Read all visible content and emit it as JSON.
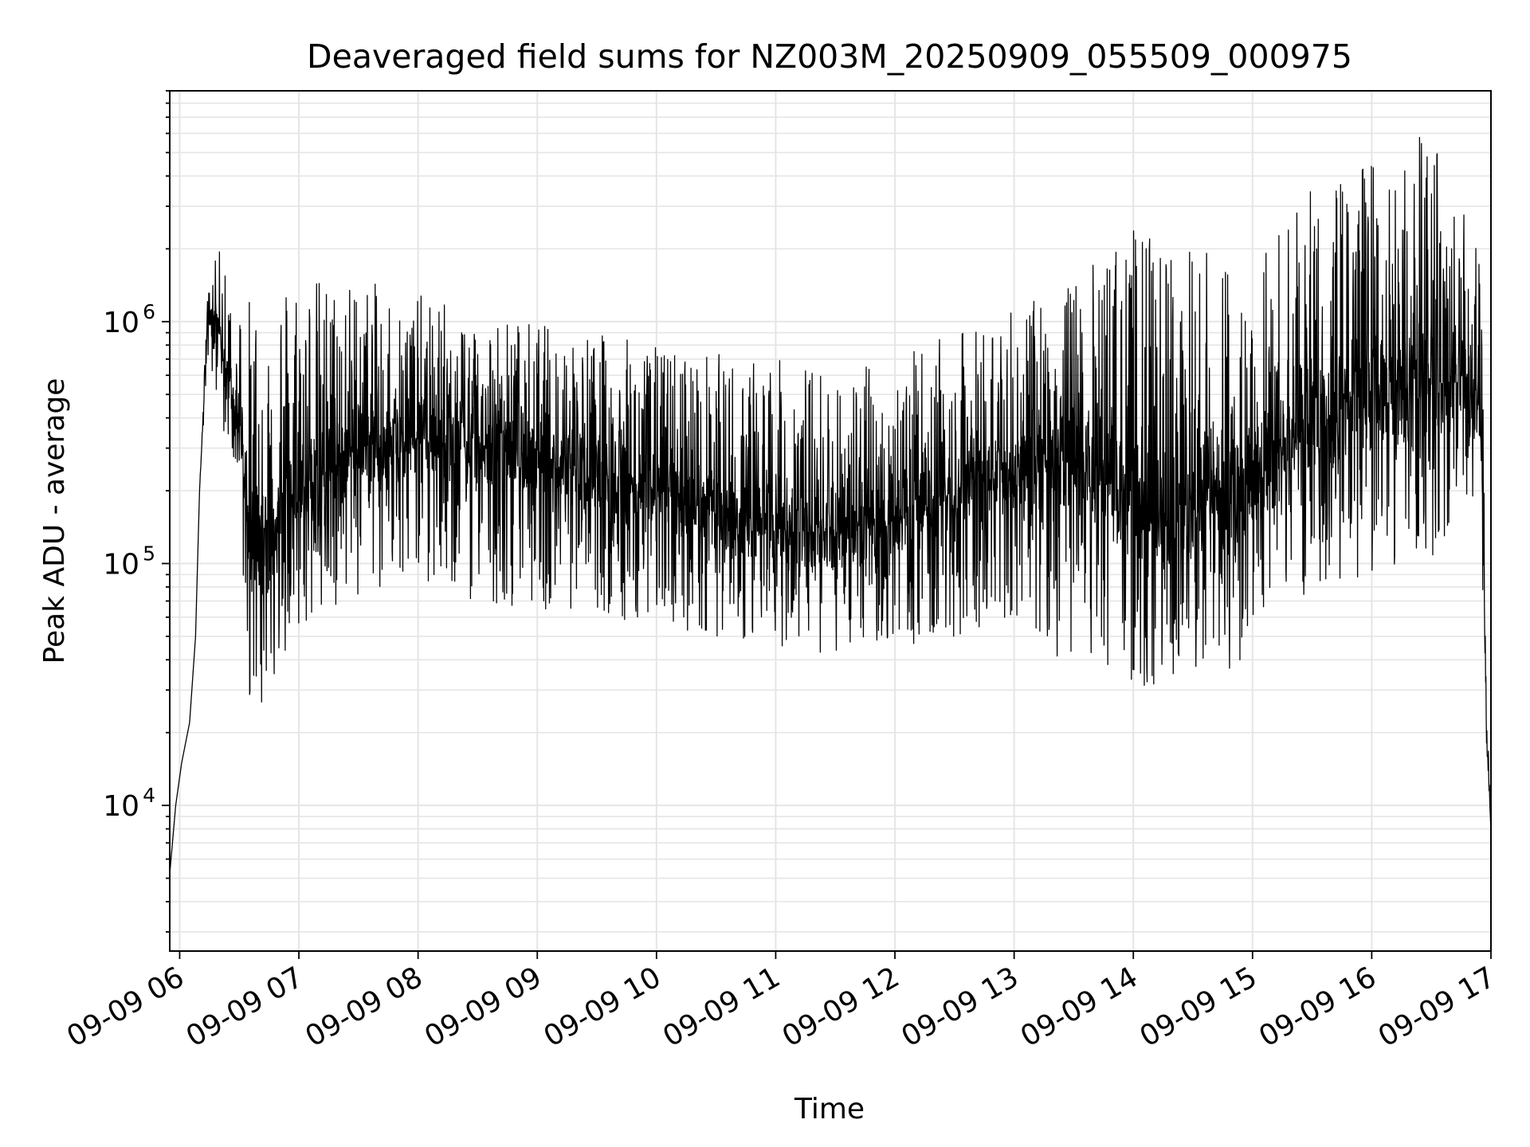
{
  "chart_data": {
    "type": "line",
    "title": "Deaveraged field sums for NZ003M_20250909_055509_000975",
    "xlabel": "Time",
    "ylabel": "Peak ADU - average",
    "yscale": "log",
    "ylim": [
      2500,
      9000000
    ],
    "xlim": [
      "2025-09-09 05:55",
      "2025-09-09 17:00"
    ],
    "grid": true,
    "line_color": "#000000",
    "grid_color": "#e5e5e5",
    "x_ticks": [
      "09-09 06",
      "09-09 07",
      "09-09 08",
      "09-09 09",
      "09-09 10",
      "09-09 11",
      "09-09 12",
      "09-09 13",
      "09-09 14",
      "09-09 15",
      "09-09 16",
      "09-09 17"
    ],
    "y_ticks": [
      {
        "base": "10",
        "exp": "4"
      },
      {
        "base": "10",
        "exp": "5"
      },
      {
        "base": "10",
        "exp": "6"
      }
    ],
    "series": [
      {
        "x": [
          "2025-09-09 05:55",
          "2025-09-09 05:58",
          "2025-09-09 06:01",
          "2025-09-09 06:05",
          "2025-09-09 06:08",
          "2025-09-09 06:10",
          "2025-09-09 06:14",
          "2025-09-09 06:18",
          "2025-09-09 06:22",
          "2025-09-09 06:26",
          "2025-09-09 06:30",
          "2025-09-09 06:35",
          "2025-09-09 06:40",
          "2025-09-09 06:45",
          "2025-09-09 06:50",
          "2025-09-09 07:00",
          "2025-09-09 07:15",
          "2025-09-09 07:30",
          "2025-09-09 07:45",
          "2025-09-09 08:00",
          "2025-09-09 08:30",
          "2025-09-09 09:00",
          "2025-09-09 09:30",
          "2025-09-09 10:00",
          "2025-09-09 10:30",
          "2025-09-09 11:00",
          "2025-09-09 11:30",
          "2025-09-09 12:00",
          "2025-09-09 12:30",
          "2025-09-09 13:00",
          "2025-09-09 13:30",
          "2025-09-09 14:00",
          "2025-09-09 14:30",
          "2025-09-09 15:00",
          "2025-09-09 15:30",
          "2025-09-09 16:00",
          "2025-09-09 16:30",
          "2025-09-09 16:45",
          "2025-09-09 16:55",
          "2025-09-09 16:58",
          "2025-09-09 17:00"
        ],
        "y": [
          5200,
          10000,
          15000,
          22000,
          50000,
          200000,
          1000000,
          1100000,
          700000,
          500000,
          400000,
          150000,
          120000,
          120000,
          150000,
          200000,
          250000,
          300000,
          320000,
          330000,
          300000,
          280000,
          240000,
          200000,
          160000,
          140000,
          130000,
          150000,
          200000,
          250000,
          260000,
          180000,
          160000,
          220000,
          400000,
          500000,
          550000,
          600000,
          400000,
          18000,
          8000
        ],
        "low_envelope": [
          5200,
          10000,
          15000,
          22000,
          50000,
          200000,
          700000,
          500000,
          350000,
          300000,
          200000,
          20000,
          25000,
          30000,
          35000,
          45000,
          60000,
          70000,
          75000,
          80000,
          70000,
          65000,
          60000,
          55000,
          50000,
          45000,
          42000,
          45000,
          50000,
          60000,
          35000,
          30000,
          30000,
          40000,
          70000,
          90000,
          100000,
          180000,
          150000,
          12000,
          7000
        ],
        "high_envelope": [
          5200,
          10000,
          15000,
          22000,
          50000,
          200000,
          1300000,
          1800000,
          2200000,
          1500000,
          1300000,
          1300000,
          1300000,
          1500000,
          1700000,
          1700000,
          1500000,
          1500000,
          1400000,
          1300000,
          1100000,
          1000000,
          900000,
          800000,
          750000,
          700000,
          650000,
          700000,
          900000,
          1100000,
          1500000,
          2500000,
          2000000,
          2000000,
          3500000,
          5000000,
          6000000,
          3000000,
          2000000,
          25000,
          10000
        ]
      }
    ]
  }
}
